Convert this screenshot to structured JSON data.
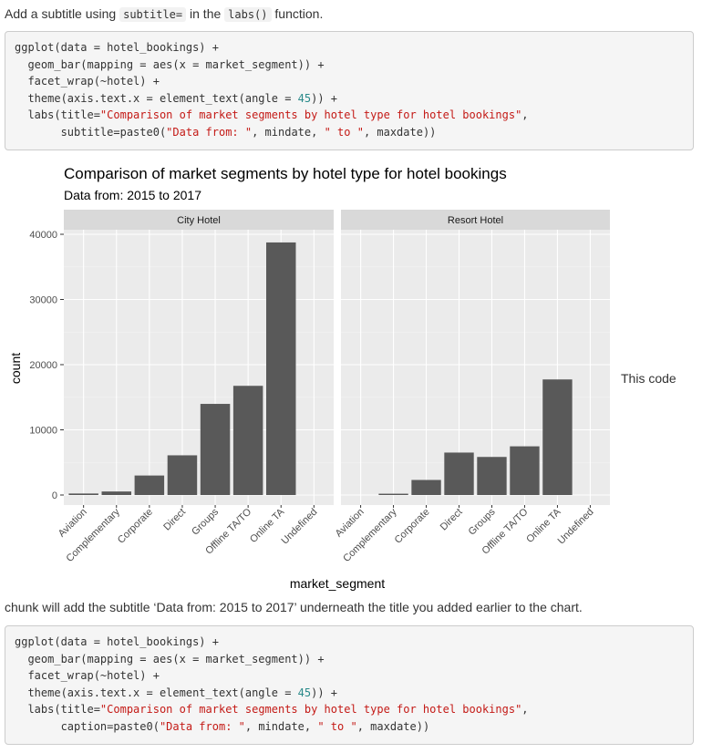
{
  "intro": {
    "before": "Add a subtitle using ",
    "code1": "subtitle=",
    "middle": " in the ",
    "code2": "labs()",
    "after": " function."
  },
  "code_block_1": [
    [
      {
        "t": "ggplot(data = hotel_bookings) +",
        "c": ""
      }
    ],
    [
      {
        "t": "  geom_bar(mapping = aes(x = market_segment)) +",
        "c": ""
      }
    ],
    [
      {
        "t": "  facet_wrap(~hotel) +",
        "c": ""
      }
    ],
    [
      {
        "t": "  theme(axis.text.x = element_text(angle = ",
        "c": ""
      },
      {
        "t": "45",
        "c": "num"
      },
      {
        "t": ")) +",
        "c": ""
      }
    ],
    [
      {
        "t": "  labs(title=",
        "c": ""
      },
      {
        "t": "\"Comparison of market segments by hotel type for hotel bookings\"",
        "c": "str"
      },
      {
        "t": ",",
        "c": ""
      }
    ],
    [
      {
        "t": "       subtitle=paste0(",
        "c": ""
      },
      {
        "t": "\"Data from: \"",
        "c": "str"
      },
      {
        "t": ", mindate, ",
        "c": ""
      },
      {
        "t": "\" to \"",
        "c": "str"
      },
      {
        "t": ", maxdate))",
        "c": ""
      }
    ]
  ],
  "side_note": "This code",
  "outro": "chunk will add the subtitle ‘Data from: 2015 to 2017’ underneath the title you added earlier to the chart.",
  "code_block_2": [
    [
      {
        "t": "ggplot(data = hotel_bookings) +",
        "c": ""
      }
    ],
    [
      {
        "t": "  geom_bar(mapping = aes(x = market_segment)) +",
        "c": ""
      }
    ],
    [
      {
        "t": "  facet_wrap(~hotel) +",
        "c": ""
      }
    ],
    [
      {
        "t": "  theme(axis.text.x = element_text(angle = ",
        "c": ""
      },
      {
        "t": "45",
        "c": "num"
      },
      {
        "t": ")) +",
        "c": ""
      }
    ],
    [
      {
        "t": "  labs(title=",
        "c": ""
      },
      {
        "t": "\"Comparison of market segments by hotel type for hotel bookings\"",
        "c": "str"
      },
      {
        "t": ",",
        "c": ""
      }
    ],
    [
      {
        "t": "       caption=paste0(",
        "c": ""
      },
      {
        "t": "\"Data from: \"",
        "c": "str"
      },
      {
        "t": ", mindate, ",
        "c": ""
      },
      {
        "t": "\" to \"",
        "c": "str"
      },
      {
        "t": ", maxdate))",
        "c": ""
      }
    ]
  ],
  "colors": {
    "panel_bg": "#ebebeb",
    "grid_major": "#ffffff",
    "strip_bg": "#d9d9d9",
    "bar_fill": "#595959",
    "string_token": "#c41a16",
    "number_token": "#2a8a8a"
  },
  "chart_data": {
    "type": "bar",
    "title": "Comparison of market segments by hotel type for hotel bookings",
    "subtitle": "Data from: 2015 to 2017",
    "xlabel": "market_segment",
    "ylabel": "count",
    "ylim": [
      0,
      40000
    ],
    "yticks": [
      0,
      10000,
      20000,
      30000,
      40000
    ],
    "grid": true,
    "categories": [
      "Aviation",
      "Complementary",
      "Corporate",
      "Direct",
      "Groups",
      "Offline TA/TO",
      "Online TA",
      "Undefined"
    ],
    "facets": [
      {
        "name": "City Hotel",
        "values": [
          230,
          540,
          2990,
          6090,
          13980,
          16750,
          38750,
          2
        ]
      },
      {
        "name": "Resort Hotel",
        "values": [
          0,
          200,
          2310,
          6510,
          5840,
          7470,
          17730,
          0
        ]
      }
    ]
  }
}
